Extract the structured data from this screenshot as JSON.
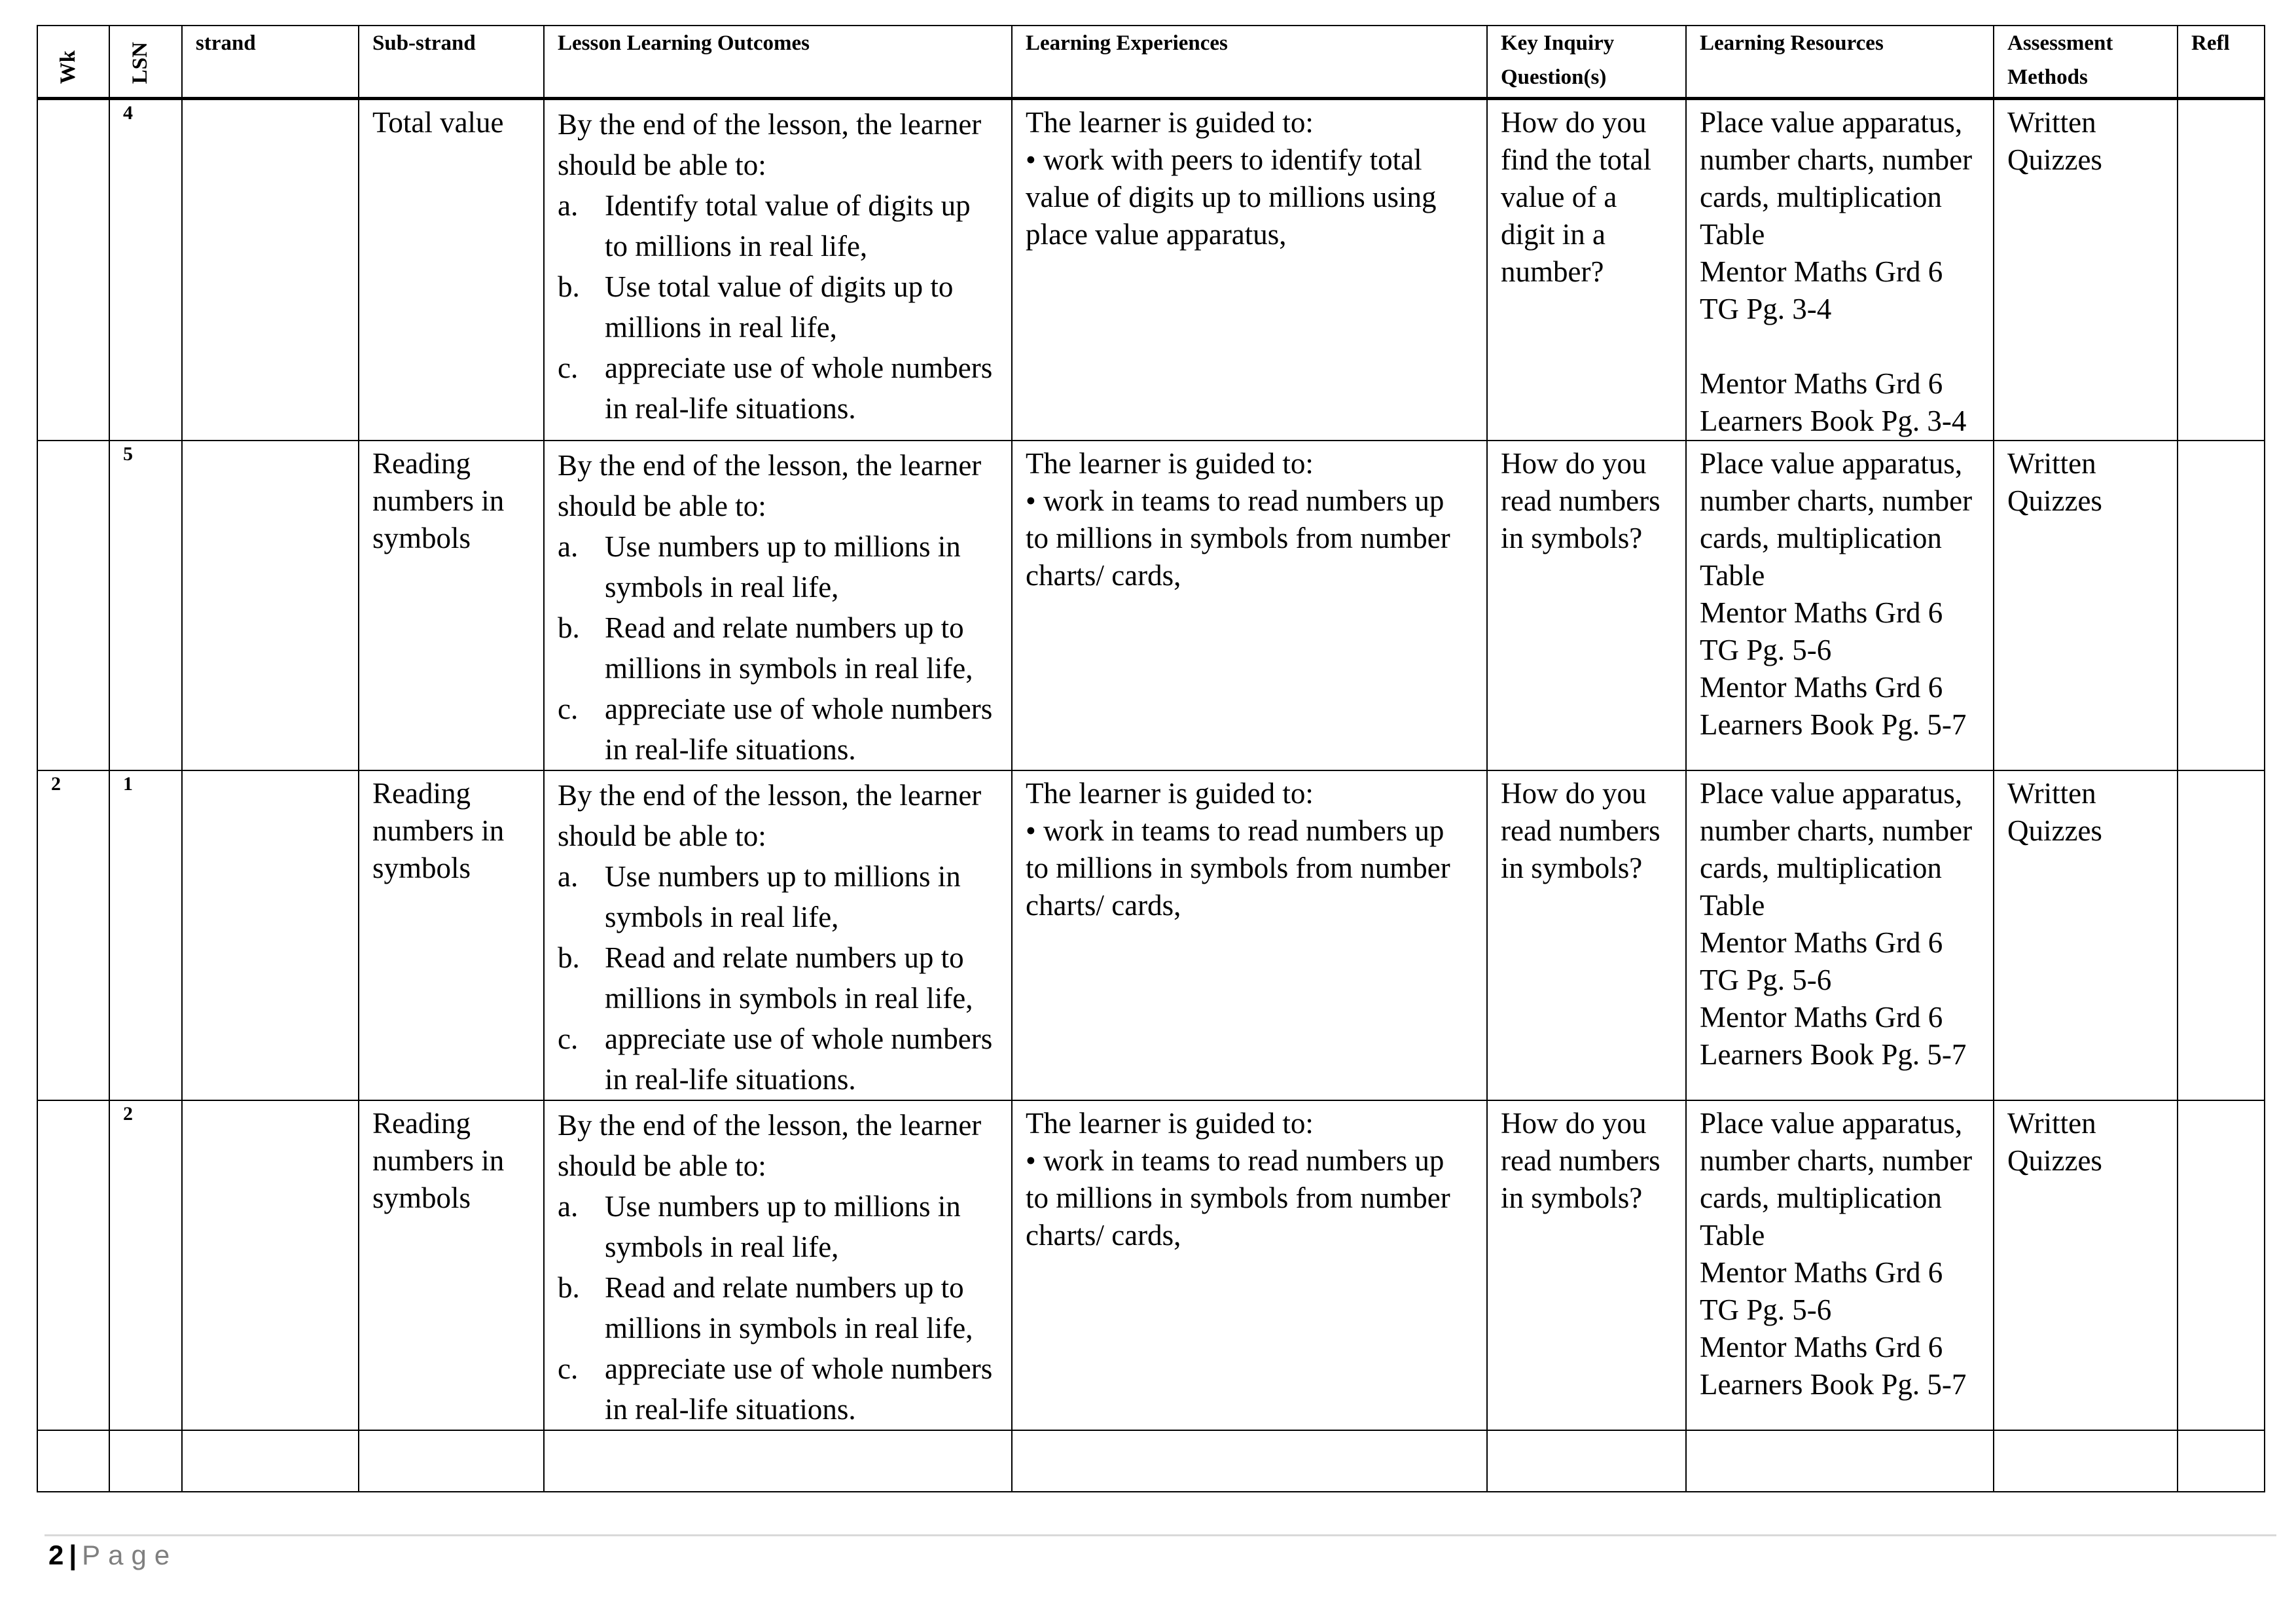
{
  "headers": [
    "Wk",
    "LSN",
    "strand",
    "Sub-strand",
    "Lesson Learning Outcomes",
    "Learning Experiences",
    "Key Inquiry Question(s)",
    "Learning Resources",
    "Assessment Methods",
    "Refl"
  ],
  "rows": [
    {
      "wk": "",
      "lsn": "4",
      "strand": "",
      "substrand": "Total value",
      "outcomes_intro": "By the end of the lesson, the learner should be able to:",
      "outcomes": [
        {
          "marker": "a.",
          "text": "Identify total value of digits up to millions in real life,"
        },
        {
          "marker": "b.",
          "text": "Use total value of digits up to millions in real life,"
        },
        {
          "marker": "c.",
          "text": "appreciate use of whole numbers in real-life situations."
        }
      ],
      "experiences_intro": "The learner is guided to:",
      "experiences": "• work with peers to identify total value of digits up to millions using place value apparatus,",
      "question": "How do you find the total value of a digit in a number?",
      "resources": [
        "Place value apparatus, number charts, number cards, multiplication Table",
        "Mentor Maths Grd 6 TG Pg. 3-4",
        "",
        "Mentor Maths Grd 6 Learners Book Pg. 3-4"
      ],
      "assessment": "Written Quizzes",
      "refl": ""
    },
    {
      "wk": "",
      "lsn": "5",
      "strand": "",
      "substrand": "Reading numbers in symbols",
      "outcomes_intro": "By the end of the lesson, the learner should be able to:",
      "outcomes": [
        {
          "marker": "a.",
          "text": "Use numbers up to millions in symbols in real life,"
        },
        {
          "marker": "b.",
          "text": "Read and relate numbers up to millions in symbols in real life,"
        },
        {
          "marker": "c.",
          "text": "appreciate use of whole numbers in real-life situations."
        }
      ],
      "experiences_intro": "The learner is guided to:",
      "experiences": "• work in teams to read numbers up to millions in symbols from number charts/ cards,",
      "question": "How do you read numbers in symbols?",
      "resources": [
        "Place value apparatus, number charts, number cards, multiplication Table",
        "Mentor Maths Grd 6 TG Pg. 5-6",
        "Mentor Maths Grd 6 Learners Book Pg. 5-7"
      ],
      "assessment": "Written Quizzes",
      "refl": ""
    },
    {
      "wk": "2",
      "lsn": "1",
      "strand": "",
      "substrand": "Reading numbers in symbols",
      "outcomes_intro": "By the end of the lesson, the learner should be able to:",
      "outcomes": [
        {
          "marker": "a.",
          "text": "Use numbers up to millions in symbols in real life,"
        },
        {
          "marker": "b.",
          "text": "Read and relate numbers up to millions in symbols in real life,"
        },
        {
          "marker": "c.",
          "text": "appreciate use of whole numbers in real-life situations."
        }
      ],
      "experiences_intro": "The learner is guided to:",
      "experiences": "• work in teams to read numbers up to millions in symbols from number charts/ cards,",
      "question": "How do you read numbers in symbols?",
      "resources": [
        "Place value apparatus, number charts, number cards, multiplication Table",
        "Mentor Maths Grd 6 TG Pg. 5-6",
        "Mentor Maths Grd 6 Learners Book Pg. 5-7"
      ],
      "assessment": "Written Quizzes",
      "refl": ""
    },
    {
      "wk": "",
      "lsn": "2",
      "strand": "",
      "substrand": "Reading numbers in symbols",
      "outcomes_intro": "By the end of the lesson, the learner should be able to:",
      "outcomes": [
        {
          "marker": "a.",
          "text": "Use numbers up to millions in symbols in real life,"
        },
        {
          "marker": "b.",
          "text": "Read and relate numbers up to millions in symbols in real life,"
        },
        {
          "marker": "c.",
          "text": "appreciate use of whole numbers in real-life situations."
        }
      ],
      "experiences_intro": "The learner is guided to:",
      "experiences": "• work in teams to read numbers up to millions in symbols from number charts/ cards,",
      "question": "How do you read numbers in symbols?",
      "resources": [
        "Place value apparatus, number charts, number cards, multiplication Table",
        "Mentor Maths Grd 6 TG Pg. 5-6",
        "Mentor Maths Grd 6 Learners Book Pg. 5-7"
      ],
      "assessment": "Written Quizzes",
      "refl": ""
    }
  ],
  "footer": {
    "page_number": "2",
    "separator": "|",
    "page_label": "Page"
  }
}
